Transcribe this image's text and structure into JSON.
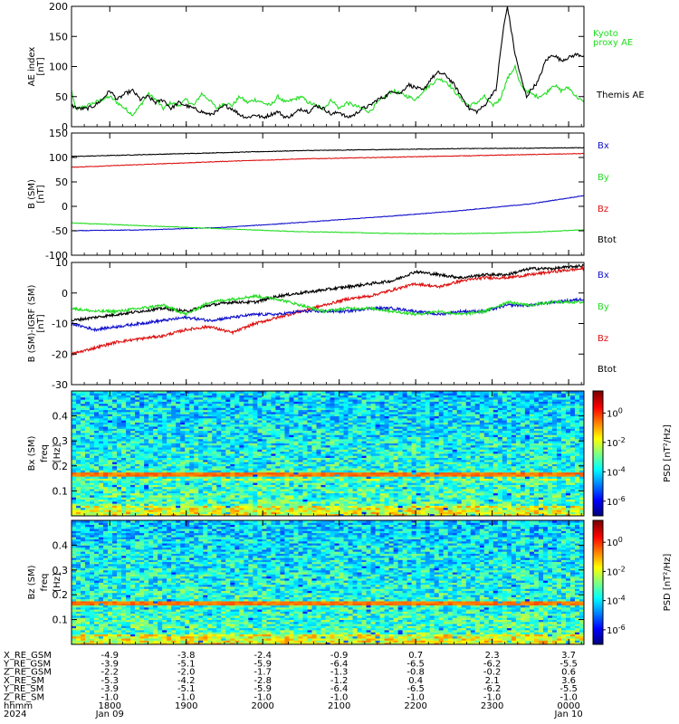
{
  "colors": {
    "black": "#000000",
    "green": "#22dd22",
    "red": "#dd1111",
    "blue": "#1111cc"
  },
  "panels": [
    {
      "id": "ae",
      "ylabel": "AE index",
      "yunit": "[nT]",
      "ylim": [
        0,
        200
      ],
      "yticks": [
        0,
        50,
        100,
        150,
        200
      ],
      "legend": [
        {
          "label": "Kyoto",
          "color": "#22dd22"
        },
        {
          "label": "proxy AE",
          "color": "#22dd22"
        },
        {
          "label": "Themis AE",
          "color": "#000000"
        }
      ]
    },
    {
      "id": "bsm",
      "ylabel": "B (SM)",
      "yunit": "[nT]",
      "ylim": [
        -100,
        150
      ],
      "yticks": [
        -100,
        -50,
        0,
        50,
        100,
        150
      ],
      "legend": [
        {
          "label": "Bx",
          "color": "#1111cc"
        },
        {
          "label": "By",
          "color": "#22dd22"
        },
        {
          "label": "Bz",
          "color": "#dd1111"
        },
        {
          "label": "Btot",
          "color": "#000000"
        }
      ]
    },
    {
      "id": "bigrf",
      "ylabel": "B (SM)-IGRF (SM)",
      "yunit": "[nT]",
      "ylim": [
        -30,
        10
      ],
      "yticks": [
        -30,
        -20,
        -10,
        0,
        10
      ],
      "legend": [
        {
          "label": "Bx",
          "color": "#1111cc"
        },
        {
          "label": "By",
          "color": "#22dd22"
        },
        {
          "label": "Bz",
          "color": "#dd1111"
        },
        {
          "label": "Btot",
          "color": "#000000"
        }
      ]
    },
    {
      "id": "bxspec",
      "ylabel": "Bx (SM)",
      "ylabel2": "freq",
      "yunit": "[Hz]",
      "ylim": [
        0,
        0.5
      ],
      "yticks": [
        0.1,
        0.2,
        0.3,
        0.4
      ],
      "yticklabels": [
        "0.1",
        "0.2",
        "0.3",
        "0.4"
      ]
    },
    {
      "id": "bzspec",
      "ylabel": "Bz (SM)",
      "ylabel2": "freq",
      "yunit": "[Hz]",
      "ylim": [
        0,
        0.5
      ],
      "yticks": [
        0.1,
        0.2,
        0.3,
        0.4
      ],
      "yticklabels": [
        "0.1",
        "0.2",
        "0.3",
        "0.4"
      ]
    }
  ],
  "colorbar": {
    "label": "PSD [nT²/Hz]",
    "ticks": [
      {
        "base": "10",
        "exp": "0",
        "value": 0
      },
      {
        "base": "10",
        "exp": "-2",
        "value": -2
      },
      {
        "base": "10",
        "exp": "-4",
        "value": -4
      },
      {
        "base": "10",
        "exp": "-6",
        "value": -6
      }
    ],
    "range": [
      -7,
      1.5
    ]
  },
  "chart_data": {
    "type": "line",
    "x_range_hours": [
      17.5,
      24.2
    ],
    "ae": {
      "kyoto_proxy_ae": {
        "x": [
          17.5,
          17.55,
          17.6,
          17.7,
          17.8,
          17.9,
          18.0,
          18.1,
          18.2,
          18.3,
          18.4,
          18.5,
          18.6,
          18.7,
          18.8,
          18.9,
          19.0,
          19.1,
          19.2,
          19.3,
          19.4,
          19.5,
          19.6,
          19.7,
          19.8,
          19.9,
          20.0,
          20.1,
          20.2,
          20.3,
          20.4,
          20.5,
          20.6,
          20.7,
          20.8,
          20.9,
          21.0,
          21.1,
          21.2,
          21.3,
          21.4,
          21.5,
          21.6,
          21.7,
          21.8,
          21.9,
          22.0,
          22.1,
          22.2,
          22.3,
          22.4,
          22.5,
          22.6,
          22.7,
          22.8,
          22.9,
          23.0,
          23.1,
          23.2,
          23.3,
          23.35,
          23.4,
          23.5,
          23.6,
          23.7,
          23.8,
          23.9,
          24.0,
          24.1,
          24.2
        ],
        "y": [
          60,
          30,
          30,
          35,
          40,
          45,
          50,
          40,
          30,
          20,
          35,
          55,
          45,
          30,
          40,
          35,
          45,
          35,
          55,
          45,
          30,
          40,
          35,
          50,
          40,
          45,
          40,
          35,
          50,
          40,
          45,
          50,
          40,
          35,
          30,
          45,
          30,
          40,
          35,
          30,
          25,
          40,
          50,
          60,
          55,
          50,
          45,
          60,
          70,
          80,
          75,
          60,
          45,
          35,
          40,
          50,
          35,
          45,
          80,
          100,
          75,
          65,
          55,
          50,
          55,
          70,
          60,
          65,
          50,
          40
        ]
      },
      "themis_ae": {
        "x": [
          17.5,
          17.6,
          17.7,
          17.8,
          17.9,
          18.0,
          18.1,
          18.2,
          18.3,
          18.4,
          18.5,
          18.6,
          18.7,
          18.8,
          18.9,
          19.0,
          19.1,
          19.2,
          19.3,
          19.4,
          19.5,
          19.6,
          19.7,
          19.8,
          19.9,
          20.0,
          20.1,
          20.2,
          20.3,
          20.4,
          20.5,
          20.6,
          20.7,
          20.8,
          20.9,
          21.0,
          21.1,
          21.2,
          21.3,
          21.4,
          21.5,
          21.6,
          21.7,
          21.8,
          21.9,
          22.0,
          22.1,
          22.2,
          22.3,
          22.4,
          22.5,
          22.6,
          22.7,
          22.8,
          22.9,
          23.0,
          23.05,
          23.1,
          23.15,
          23.2,
          23.3,
          23.4,
          23.45,
          23.5,
          23.6,
          23.7,
          23.8,
          23.9,
          24.0,
          24.1,
          24.2
        ],
        "y": [
          35,
          30,
          30,
          35,
          45,
          60,
          45,
          55,
          60,
          45,
          50,
          40,
          45,
          30,
          40,
          35,
          30,
          25,
          20,
          25,
          35,
          30,
          20,
          15,
          20,
          15,
          20,
          25,
          15,
          20,
          30,
          25,
          35,
          30,
          20,
          25,
          15,
          20,
          30,
          35,
          45,
          50,
          60,
          55,
          70,
          65,
          60,
          80,
          90,
          85,
          70,
          50,
          30,
          25,
          35,
          55,
          60,
          115,
          165,
          200,
          120,
          70,
          50,
          60,
          75,
          110,
          120,
          110,
          115,
          120,
          118
        ]
      }
    },
    "b_sm": {
      "Btot": {
        "x": [
          17.5,
          18.5,
          19.5,
          20.5,
          21.5,
          22.5,
          23.5,
          24.2
        ],
        "y": [
          102,
          106,
          110,
          114,
          116,
          118,
          119,
          120
        ]
      },
      "Bz": {
        "x": [
          17.5,
          18.5,
          19.5,
          20.5,
          21.5,
          22.5,
          23.5,
          24.2
        ],
        "y": [
          80,
          86,
          92,
          97,
          100,
          103,
          106,
          108
        ]
      },
      "Bx": {
        "x": [
          17.5,
          18.5,
          19.5,
          20.5,
          21.5,
          22.5,
          23.5,
          24.2
        ],
        "y": [
          -50,
          -48,
          -43,
          -33,
          -22,
          -10,
          5,
          22
        ]
      },
      "By": {
        "x": [
          17.5,
          18.0,
          18.5,
          19.0,
          19.5,
          20.0,
          20.5,
          21.0,
          21.5,
          22.0,
          22.5,
          23.0,
          23.5,
          24.2
        ],
        "y": [
          -34,
          -37,
          -40,
          -43,
          -46,
          -49,
          -52,
          -53,
          -55,
          -56,
          -56,
          -55,
          -53,
          -48
        ]
      }
    },
    "b_igrf": {
      "Btot": {
        "x": [
          17.5,
          17.8,
          18.1,
          18.4,
          18.7,
          19.0,
          19.3,
          19.6,
          19.9,
          20.2,
          20.5,
          20.8,
          21.1,
          21.4,
          21.7,
          22.0,
          22.3,
          22.6,
          22.9,
          23.2,
          23.5,
          23.8,
          24.2
        ],
        "y": [
          -9,
          -8,
          -7,
          -6,
          -5,
          -6,
          -4,
          -3,
          -3,
          -1,
          0,
          1,
          2,
          3,
          4,
          7,
          6,
          5,
          6,
          6,
          8,
          8,
          9
        ]
      },
      "Bz": {
        "x": [
          17.5,
          17.8,
          18.1,
          18.4,
          18.7,
          19.0,
          19.3,
          19.6,
          19.9,
          20.2,
          20.5,
          20.8,
          21.1,
          21.4,
          21.7,
          22.0,
          22.3,
          22.6,
          22.9,
          23.2,
          23.5,
          23.8,
          24.2
        ],
        "y": [
          -20,
          -18,
          -16,
          -15,
          -14,
          -12,
          -11,
          -13,
          -10,
          -8,
          -6,
          -4,
          -2,
          -1,
          1,
          3,
          2,
          4,
          5,
          5,
          6,
          7,
          8
        ]
      },
      "Bx": {
        "x": [
          17.5,
          17.8,
          18.1,
          18.4,
          18.7,
          19.0,
          19.3,
          19.6,
          19.9,
          20.2,
          20.5,
          20.8,
          21.1,
          21.4,
          21.7,
          22.0,
          22.3,
          22.6,
          22.9,
          23.2,
          23.5,
          23.8,
          24.2
        ],
        "y": [
          -10,
          -12,
          -11,
          -10,
          -9,
          -8,
          -9,
          -8,
          -7,
          -7,
          -6,
          -6,
          -6,
          -5,
          -5,
          -6,
          -7,
          -6,
          -6,
          -4,
          -4,
          -3,
          -2
        ]
      },
      "By": {
        "x": [
          17.5,
          17.8,
          18.1,
          18.4,
          18.7,
          19.0,
          19.3,
          19.6,
          19.9,
          20.2,
          20.5,
          20.8,
          21.1,
          21.4,
          21.7,
          22.0,
          22.3,
          22.6,
          22.9,
          23.2,
          23.5,
          23.8,
          24.2
        ],
        "y": [
          -5,
          -6,
          -6,
          -5,
          -4,
          -7,
          -3,
          -2,
          -1,
          -2,
          -4,
          -6,
          -5,
          -5,
          -6,
          -7,
          -6,
          -7,
          -6,
          -3,
          -4,
          -3,
          -3
        ]
      }
    }
  },
  "xaxis": {
    "tick_hours": [
      18,
      19,
      20,
      21,
      22,
      23,
      24
    ],
    "rows": [
      {
        "label": "X_RE_GSM",
        "values": [
          "-4.9",
          "-3.8",
          "-2.4",
          "-0.9",
          "0.7",
          "2.3",
          "3.7"
        ]
      },
      {
        "label": "Y_RE_GSM",
        "values": [
          "-3.9",
          "-5.1",
          "-5.9",
          "-6.4",
          "-6.5",
          "-6.2",
          "-5.5"
        ]
      },
      {
        "label": "Z_RE_GSM",
        "values": [
          "-2.2",
          "-2.0",
          "-1.7",
          "-1.3",
          "-0.8",
          "-0.2",
          "0.6"
        ]
      },
      {
        "label": "X_RE_SM",
        "values": [
          "-5.3",
          "-4.2",
          "-2.8",
          "-1.2",
          "0.4",
          "2.1",
          "3.6"
        ]
      },
      {
        "label": "Y_RE_SM",
        "values": [
          "-3.9",
          "-5.1",
          "-5.9",
          "-6.4",
          "-6.5",
          "-6.2",
          "-5.5"
        ]
      },
      {
        "label": "Z_RE_SM",
        "values": [
          "-1.0",
          "-1.0",
          "-1.0",
          "-1.0",
          "-1.0",
          "-1.0",
          "-1.0"
        ]
      },
      {
        "label": "hhmm",
        "values": [
          "1800",
          "1900",
          "2000",
          "2100",
          "2200",
          "2300",
          "0000"
        ]
      },
      {
        "label": "2024",
        "values": [
          "Jan 09",
          "",
          "",
          "",
          "",
          "",
          "Jan 10"
        ]
      }
    ]
  }
}
